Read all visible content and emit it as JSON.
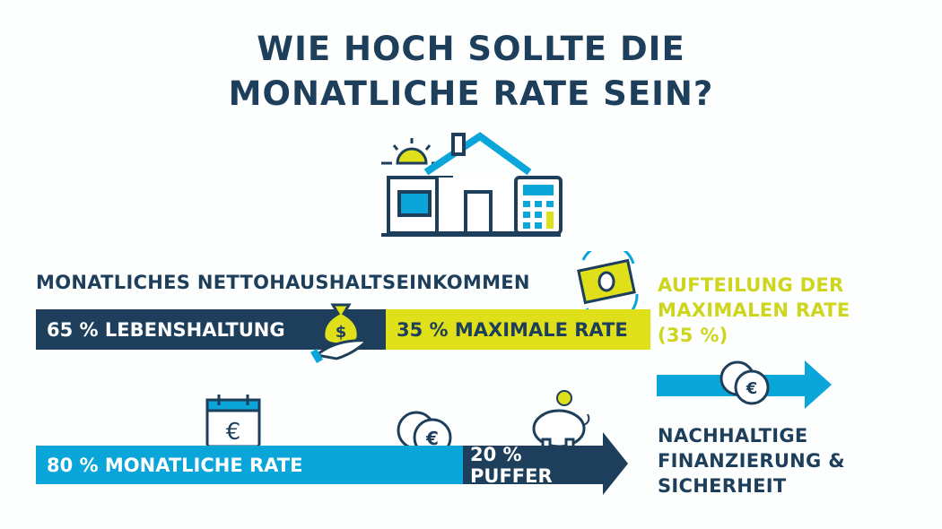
{
  "title": {
    "line1": "WIE HOCH SOLLTE DIE",
    "line2": "MONATLICHE RATE SEIN?"
  },
  "income_header": "MONATLICHES NETTOHAUSHALTSEINKOMMEN",
  "split1": {
    "left": {
      "label": "65 % LEBENSHALTUNG",
      "percent": 65
    },
    "right": {
      "label": "35 % MAXIMALE RATE",
      "percent": 35
    }
  },
  "breakdown": {
    "line1": "AUFTEILUNG DER",
    "line2": "MAXIMALEN RATE",
    "line3": "(35 %)"
  },
  "split2": {
    "left": {
      "label": "80 % MONATLICHE RATE",
      "percent": 80
    },
    "right": {
      "label": "20 % PUFFER",
      "percent": 20
    }
  },
  "outcome": {
    "line1": "NACHHALTIGE",
    "line2": "FINANZIERUNG &",
    "line3": "SICHERHEIT"
  },
  "colors": {
    "navy": "#1d3f5c",
    "yellow": "#dfe01a",
    "cyan": "#0aa6d9",
    "text_yellow": "#cdd51c"
  },
  "icons": [
    "house-icon",
    "sun-icon",
    "calculator-icon",
    "money-bag-icon",
    "hand-icon",
    "banknote-cycle-icon",
    "euro-coins-icon",
    "calendar-euro-icon",
    "piggy-bank-icon",
    "arrow-right-icon"
  ]
}
